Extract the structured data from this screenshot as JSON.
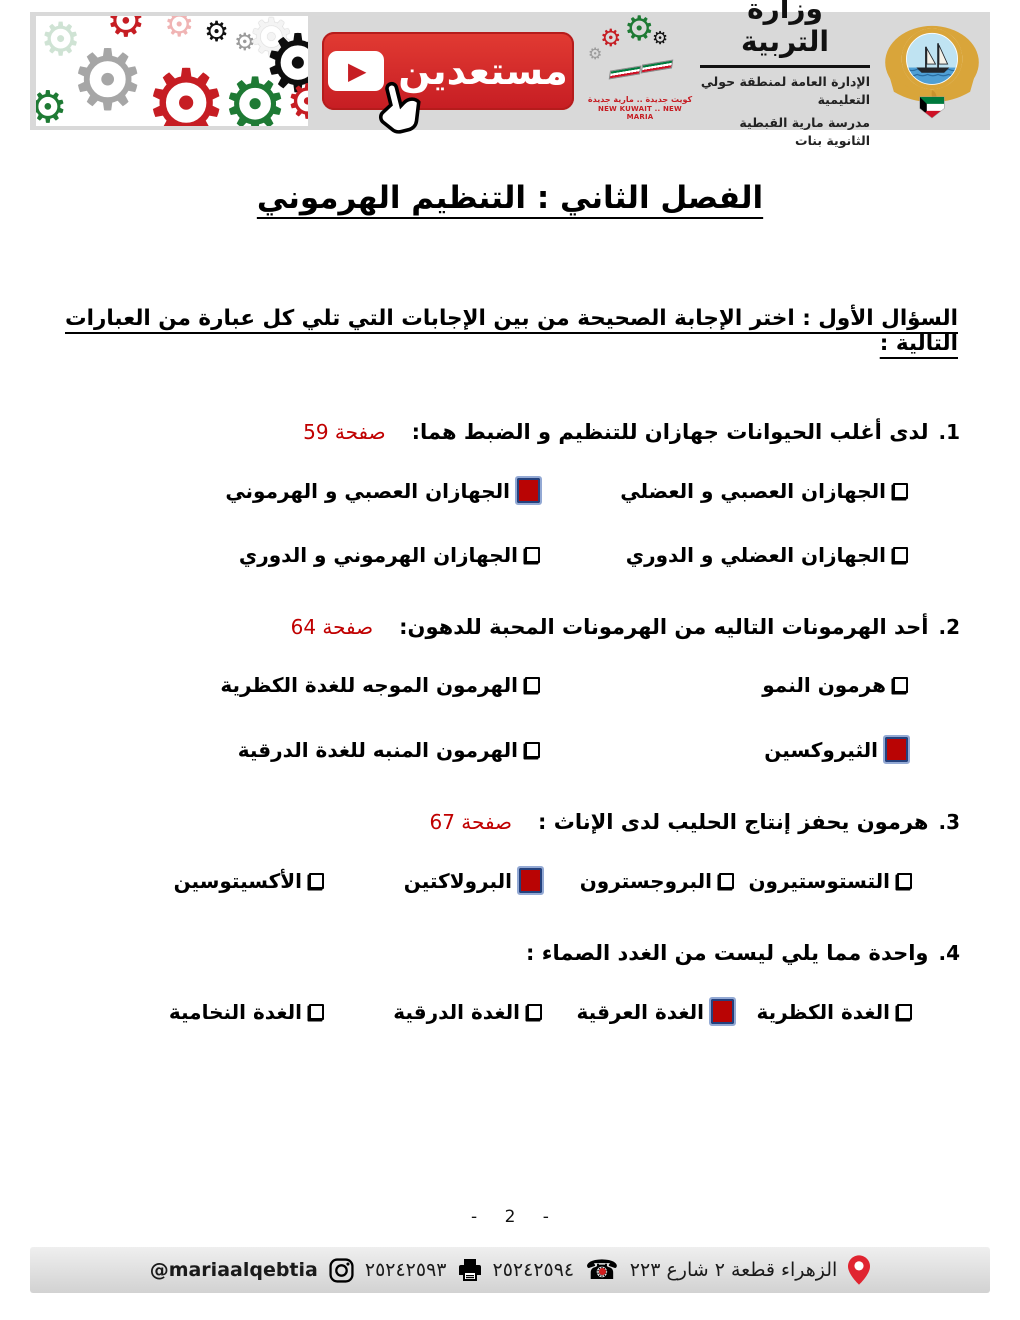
{
  "header": {
    "banner_label": "مستعدين",
    "ministry_title": "وزارة التربية",
    "ministry_sub1": "الإدارة العامة لمنطقة حولي التعليمية",
    "ministry_sub2": "مدرسة مارية القبطية الثانوية بنات",
    "school_motto_ar": "كويت جديدة .. مارية جديدة",
    "school_motto_en": "NEW KUWAIT .. NEW MARIA"
  },
  "title": "الفصل الثاني : التنظيم الهرموني",
  "section_heading": "السؤال الأول : اختر الإجابة الصحيحة من بين الإجابات التي تلي كل عبارة من العبارات التالية :",
  "questions": [
    {
      "number": "1.",
      "text": "لدى أغلب الحيوانات جهازان للتنظيم و الضبط هما:",
      "page_ref": "صفحة 59",
      "layout": "2col",
      "options": [
        {
          "label": "الجهازان العصبي و العضلي",
          "checked": false
        },
        {
          "label": "الجهازان العصبي و الهرموني",
          "checked": true
        },
        {
          "label": "الجهازان العضلي و الدوري",
          "checked": false
        },
        {
          "label": "الجهازان الهرموني و الدوري",
          "checked": false
        }
      ]
    },
    {
      "number": "2.",
      "text": "أحد الهرمونات التاليه من الهرمونات المحبة للدهون:",
      "page_ref": "صفحة 64",
      "layout": "2col",
      "options": [
        {
          "label": "هرمون النمو",
          "checked": false
        },
        {
          "label": "الهرمون الموجه للغدة الكظرية",
          "checked": false
        },
        {
          "label": "الثيروكسين",
          "checked": true
        },
        {
          "label": "الهرمون المنبه للغدة الدرقية",
          "checked": false
        }
      ]
    },
    {
      "number": "3.",
      "text": "هرمون يحفز إنتاج الحليب لدى الإناث :",
      "page_ref": "صفحة 67",
      "layout": "4col",
      "options": [
        {
          "label": "التستوستيرون",
          "checked": false
        },
        {
          "label": "البروجسترون",
          "checked": false
        },
        {
          "label": "البرولاكتين",
          "checked": true
        },
        {
          "label": "الأكسيتوسين",
          "checked": false
        }
      ]
    },
    {
      "number": "4.",
      "text": "واحدة مما يلي ليست من الغدد الصماء :",
      "page_ref": "",
      "layout": "4col",
      "options": [
        {
          "label": "الغدة الكظرية",
          "checked": false
        },
        {
          "label": "الغدة العرقية",
          "checked": true
        },
        {
          "label": "الغدة الدرقية",
          "checked": false
        },
        {
          "label": "الغدة النخامية",
          "checked": false
        }
      ]
    }
  ],
  "page_number": "- 2 -",
  "footer": {
    "address": "الزهراء قطعة ٢ شارع ٢٢٣",
    "phone": "٢٥٢٤٢٥٩٤",
    "fax": "٢٥٢٤٢٥٩٣",
    "instagram": "@mariaalqebtia"
  },
  "colors": {
    "accent_red": "#c00000",
    "banner_red": "#c61d23",
    "checkbox_fill": "#b90404",
    "checkbox_border": "#24417d",
    "checkbox_outline": "#93a9d4"
  }
}
